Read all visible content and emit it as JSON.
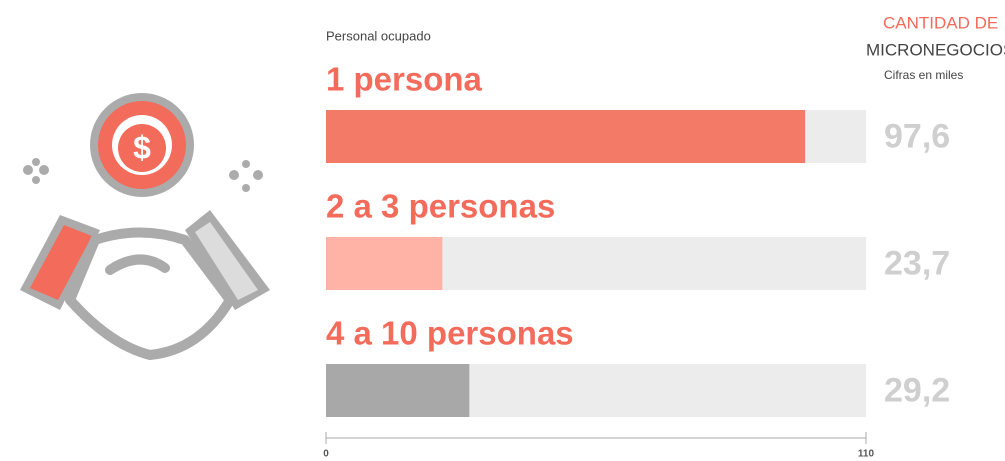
{
  "chart_data": {
    "type": "bar",
    "orientation": "horizontal",
    "category_label": "Personal ocupado",
    "title_lines": [
      "CANTIDAD DE",
      "MICRONEGOCIOS"
    ],
    "note": "Cifras en miles",
    "categories": [
      "1 persona",
      "2 a 3 personas",
      "4 a 10 personas"
    ],
    "values": [
      97.6,
      23.7,
      29.2
    ],
    "value_labels": [
      "97,6",
      "23,7",
      "29,2"
    ],
    "colors": [
      "#f47a68",
      "#ffb3a6",
      "#a8a8a8"
    ],
    "xlim": [
      0,
      110
    ],
    "xticks": [
      0,
      110
    ]
  }
}
